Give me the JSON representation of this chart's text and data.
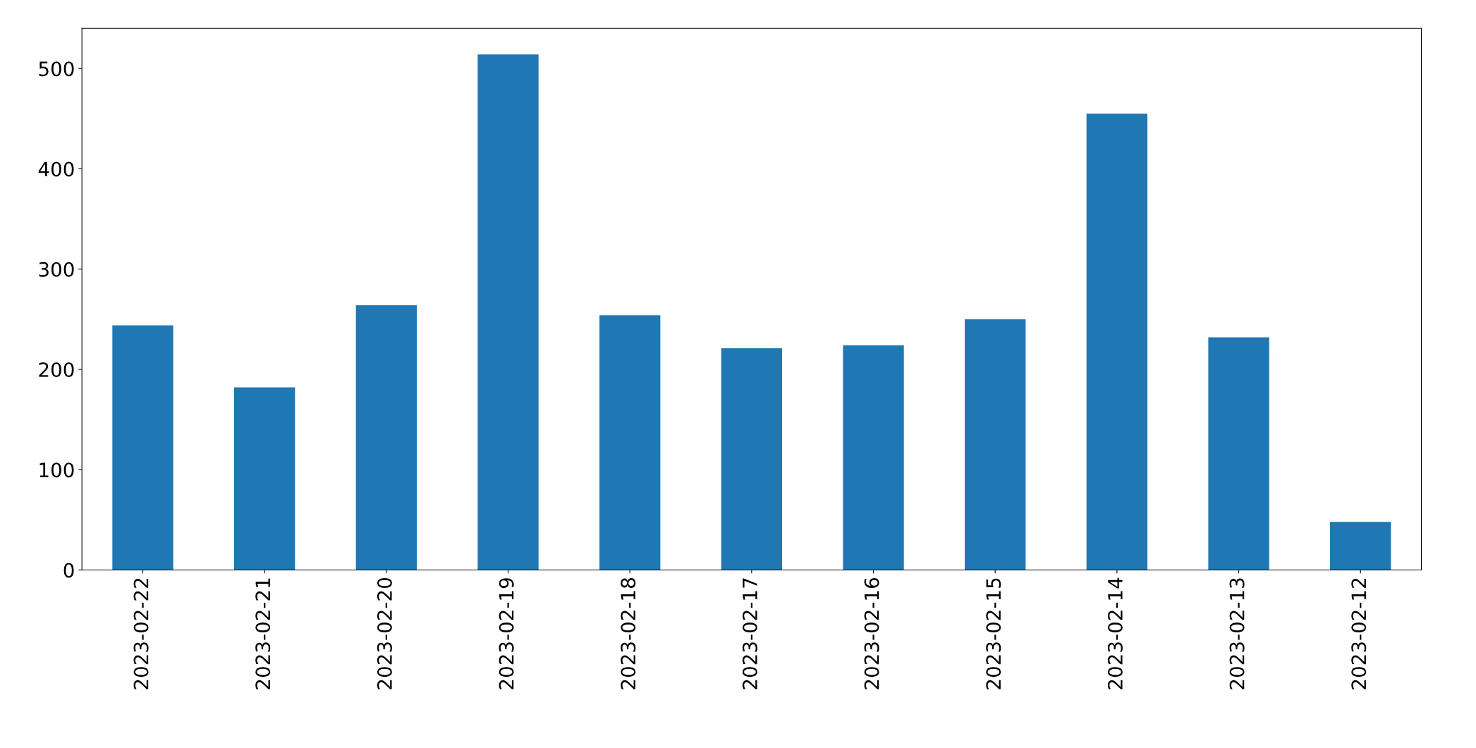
{
  "chart_data": {
    "type": "bar",
    "categories": [
      "2023-02-22",
      "2023-02-21",
      "2023-02-20",
      "2023-02-19",
      "2023-02-18",
      "2023-02-17",
      "2023-02-16",
      "2023-02-15",
      "2023-02-14",
      "2023-02-13",
      "2023-02-12"
    ],
    "values": [
      244,
      182,
      264,
      514,
      254,
      221,
      224,
      250,
      455,
      232,
      48
    ],
    "color": "#1f77b4",
    "ylim": [
      0,
      540
    ],
    "yticks": [
      0,
      100,
      200,
      300,
      400,
      500
    ],
    "grid": false,
    "legend": false
  }
}
